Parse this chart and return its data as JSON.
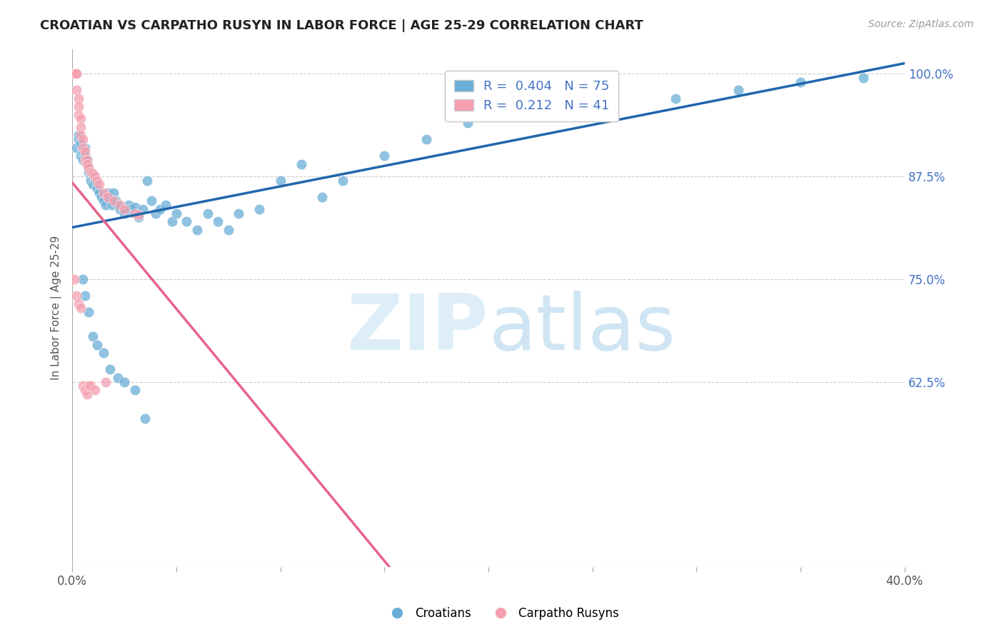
{
  "title": "CROATIAN VS CARPATHO RUSYN IN LABOR FORCE | AGE 25-29 CORRELATION CHART",
  "source": "Source: ZipAtlas.com",
  "ylabel": "In Labor Force | Age 25-29",
  "xlim": [
    0.0,
    0.4
  ],
  "ylim": [
    0.4,
    1.03
  ],
  "xticks": [
    0.0,
    0.05,
    0.1,
    0.15,
    0.2,
    0.25,
    0.3,
    0.35,
    0.4
  ],
  "yticks_right": [
    0.625,
    0.75,
    0.875,
    1.0
  ],
  "ytick_labels_right": [
    "62.5%",
    "75.0%",
    "87.5%",
    "100.0%"
  ],
  "blue_color": "#6aaed6",
  "pink_color": "#f4a0b0",
  "blue_line_color": "#2166ac",
  "pink_line_color": "#e8638a",
  "legend_R_blue": "R =  0.404",
  "legend_N_blue": "N = 75",
  "legend_R_pink": "R =  0.212",
  "legend_N_pink": "N = 41",
  "legend_label_blue": "Croatians",
  "legend_label_pink": "Carpatho Rusyns",
  "blue_scatter_x": [
    0.002,
    0.003,
    0.003,
    0.004,
    0.004,
    0.005,
    0.005,
    0.006,
    0.006,
    0.007,
    0.007,
    0.008,
    0.008,
    0.009,
    0.009,
    0.01,
    0.01,
    0.011,
    0.012,
    0.013,
    0.014,
    0.015,
    0.016,
    0.017,
    0.018,
    0.019,
    0.02,
    0.021,
    0.022,
    0.023,
    0.025,
    0.027,
    0.028,
    0.03,
    0.032,
    0.034,
    0.036,
    0.038,
    0.04,
    0.042,
    0.045,
    0.048,
    0.05,
    0.055,
    0.06,
    0.065,
    0.07,
    0.075,
    0.08,
    0.09,
    0.1,
    0.11,
    0.12,
    0.13,
    0.15,
    0.17,
    0.19,
    0.21,
    0.23,
    0.26,
    0.29,
    0.32,
    0.35,
    0.38,
    0.005,
    0.006,
    0.008,
    0.01,
    0.012,
    0.015,
    0.018,
    0.022,
    0.025,
    0.03,
    0.035
  ],
  "blue_scatter_y": [
    0.91,
    0.92,
    0.925,
    0.915,
    0.9,
    0.905,
    0.895,
    0.91,
    0.9,
    0.895,
    0.89,
    0.885,
    0.88,
    0.875,
    0.87,
    0.875,
    0.865,
    0.87,
    0.86,
    0.855,
    0.85,
    0.845,
    0.84,
    0.855,
    0.845,
    0.84,
    0.855,
    0.845,
    0.84,
    0.835,
    0.83,
    0.84,
    0.835,
    0.838,
    0.825,
    0.835,
    0.87,
    0.845,
    0.83,
    0.835,
    0.84,
    0.82,
    0.83,
    0.82,
    0.81,
    0.83,
    0.82,
    0.81,
    0.83,
    0.835,
    0.87,
    0.89,
    0.85,
    0.87,
    0.9,
    0.92,
    0.94,
    0.95,
    0.955,
    0.96,
    0.97,
    0.98,
    0.99,
    0.995,
    0.75,
    0.73,
    0.71,
    0.68,
    0.67,
    0.66,
    0.64,
    0.63,
    0.625,
    0.615,
    0.58
  ],
  "pink_scatter_x": [
    0.001,
    0.001,
    0.002,
    0.002,
    0.002,
    0.003,
    0.003,
    0.003,
    0.004,
    0.004,
    0.004,
    0.005,
    0.005,
    0.006,
    0.006,
    0.007,
    0.007,
    0.008,
    0.009,
    0.01,
    0.011,
    0.012,
    0.013,
    0.015,
    0.017,
    0.02,
    0.023,
    0.025,
    0.03,
    0.032,
    0.001,
    0.002,
    0.003,
    0.004,
    0.005,
    0.006,
    0.007,
    0.008,
    0.009,
    0.011,
    0.016
  ],
  "pink_scatter_y": [
    1.0,
    1.0,
    1.0,
    1.0,
    0.98,
    0.97,
    0.96,
    0.95,
    0.945,
    0.935,
    0.925,
    0.92,
    0.91,
    0.905,
    0.895,
    0.895,
    0.89,
    0.885,
    0.88,
    0.878,
    0.875,
    0.87,
    0.865,
    0.855,
    0.85,
    0.845,
    0.84,
    0.835,
    0.83,
    0.828,
    0.75,
    0.73,
    0.72,
    0.715,
    0.62,
    0.615,
    0.61,
    0.62,
    0.62,
    0.615,
    0.625
  ]
}
